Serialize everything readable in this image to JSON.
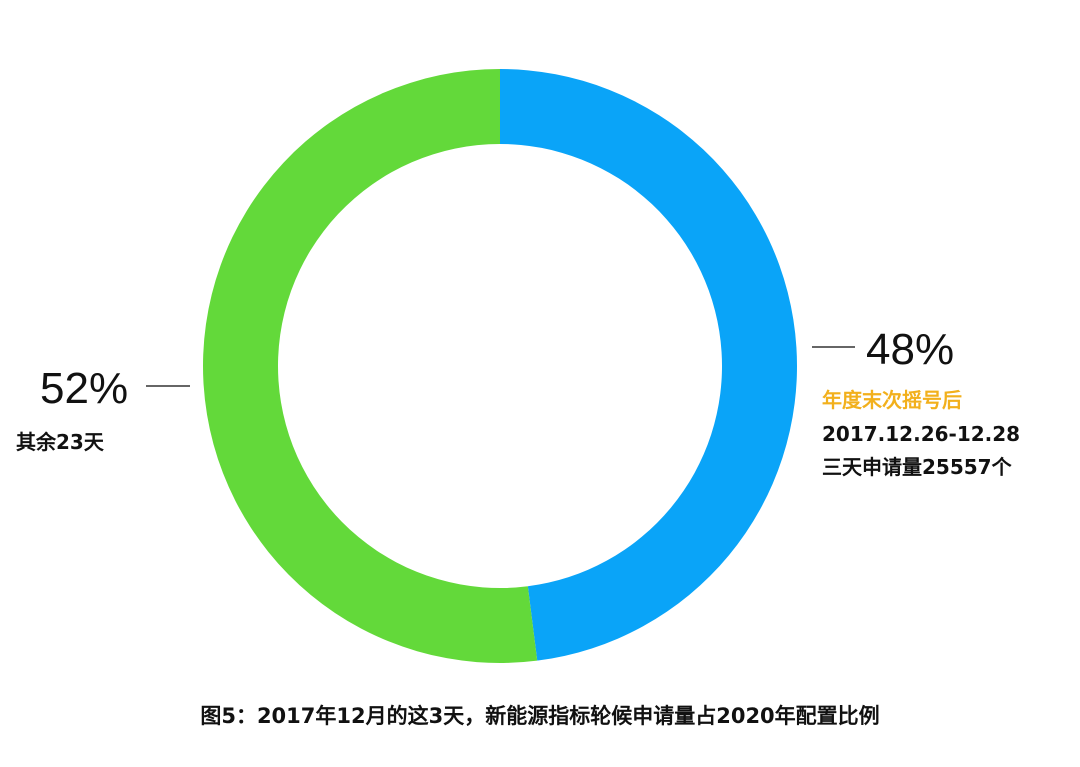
{
  "chart_data": {
    "type": "pie",
    "variant": "donut",
    "title": "图5：2017年12月的这3天，新能源指标轮候申请量占2020年配置比例",
    "slices": [
      {
        "value": 48,
        "percent_label": "48%",
        "color": "#0aa4f8",
        "label_lines": [
          {
            "text": "年度末次摇号后",
            "color": "#f2b01c"
          },
          {
            "text": "2017.12.26-12.28",
            "color": "#111111"
          },
          {
            "text": "三天申请量25557个",
            "color": "#111111"
          }
        ]
      },
      {
        "value": 52,
        "percent_label": "52%",
        "color": "#63d93a",
        "label_lines": [
          {
            "text": "其余23天",
            "color": "#111111"
          }
        ]
      }
    ]
  }
}
